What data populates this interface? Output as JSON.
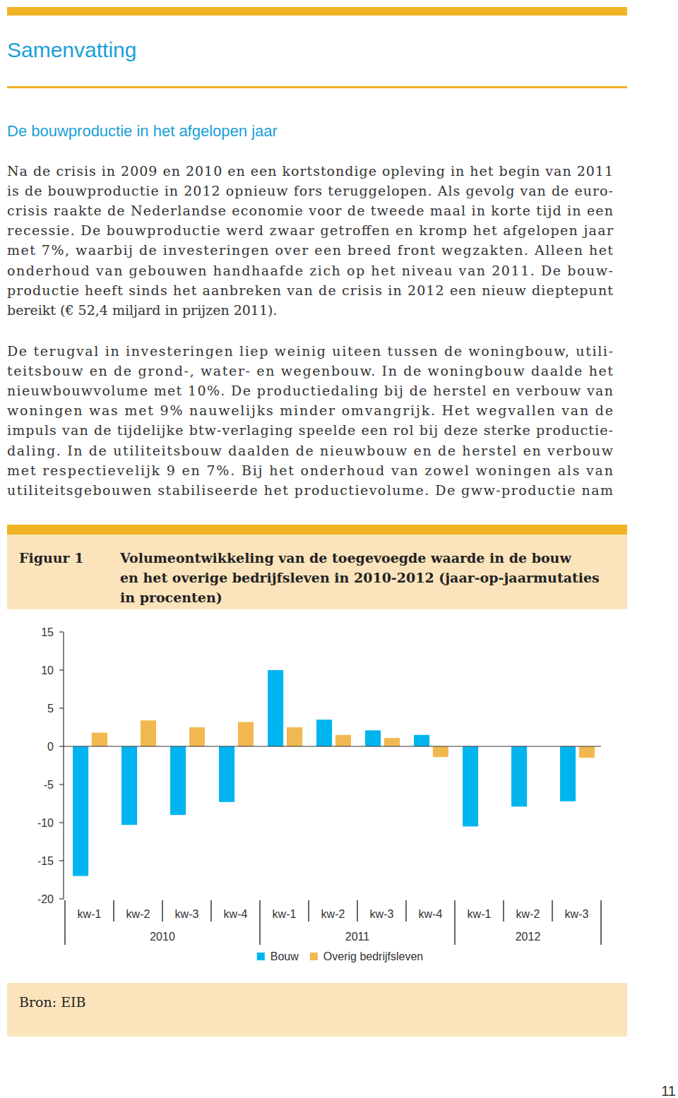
{
  "header": {
    "title": "Samenvatting"
  },
  "section": {
    "heading": "De bouwproductie in het afgelopen jaar",
    "paragraphs": [
      [
        "Na de crisis in 2009 en 2010 en een kortstondige opleving in het begin van 2011",
        "is de bouwproductie in 2012 opnieuw fors teruggelopen. Als gevolg van de euro-",
        "crisis raakte de Nederlandse economie voor de tweede maal in korte tijd in een",
        "recessie. De bouwproductie werd zwaar getroffen en kromp het afgelopen jaar",
        "met 7%, waarbij de investeringen over een breed front wegzakten. Alleen het",
        "onderhoud van gebouwen handhaafde zich op het niveau van 2011. De bouw-",
        "productie heeft sinds het aanbreken van de crisis in 2012 een nieuw dieptepunt",
        "bereikt (€ 52,4 miljard in prijzen 2011)."
      ],
      [
        "De terugval in investeringen liep weinig uiteen tussen de woningbouw, utili-",
        "teitsbouw en de grond-, water- en wegenbouw. In de woningbouw daalde het",
        "nieuwbouwvolume met 10%. De productiedaling bij de herstel en verbouw van",
        "woningen was met 9% nauwelijks minder omvangrijk. Het wegvallen van de",
        "impuls van de tijdelijke btw-verlaging speelde een rol bij deze sterke productie-",
        "daling. In de utiliteitsbouw daalden de nieuwbouw en de herstel en verbouw",
        "met respectievelijk 9 en 7%. Bij het onderhoud van zowel woningen als van",
        "utiliteitsgebouwen stabiliseerde het productievolume. De gww-productie nam"
      ]
    ]
  },
  "figure": {
    "label": "Figuur 1",
    "title_lines": [
      "Volumeontwikkeling van de toegevoegde waarde in de bouw",
      "en het overige bedrijfsleven in 2010-2012 (jaar-op-jaarmutaties",
      "in procenten)"
    ],
    "source": "Bron: EIB"
  },
  "chart_data": {
    "type": "bar",
    "categories": [
      "kw-1",
      "kw-2",
      "kw-3",
      "kw-4",
      "kw-1",
      "kw-2",
      "kw-3",
      "kw-4",
      "kw-1",
      "kw-2",
      "kw-3"
    ],
    "category_groups": [
      "2010",
      "2010",
      "2010",
      "2010",
      "2011",
      "2011",
      "2011",
      "2011",
      "2012",
      "2012",
      "2012"
    ],
    "series": [
      {
        "name": "Bouw",
        "color": "#00b5ef",
        "values": [
          -17,
          -10.3,
          -9,
          -7.3,
          10,
          3.5,
          2.1,
          1.5,
          -10.5,
          -7.9,
          -7.2
        ]
      },
      {
        "name": "Overig bedrijfsleven",
        "color": "#f2b850",
        "values": [
          1.8,
          3.4,
          2.5,
          3.2,
          2.5,
          1.5,
          1.1,
          -1.4,
          0,
          0,
          -1.5
        ]
      }
    ],
    "ylim": [
      -20,
      15
    ],
    "yticks": [
      -20,
      -15,
      -10,
      -5,
      0,
      5,
      10,
      15
    ],
    "grid": false,
    "legend": "bottom"
  },
  "page_number": "11"
}
